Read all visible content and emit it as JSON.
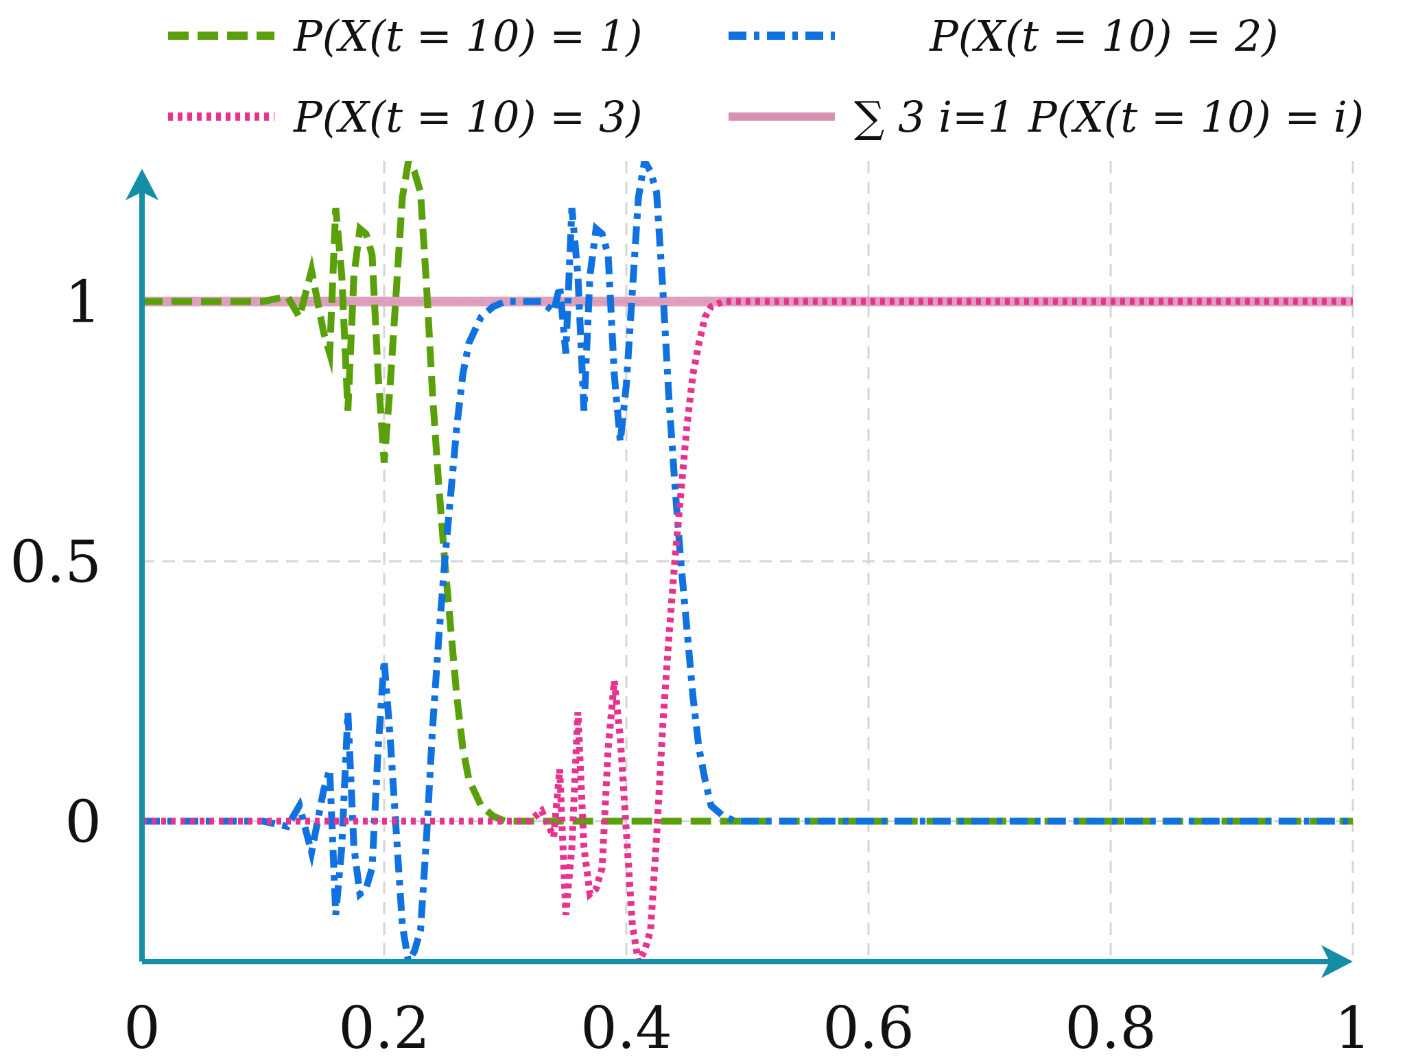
{
  "chart_data": {
    "type": "line",
    "title": "",
    "xlabel": "",
    "ylabel": "",
    "xlim": [
      0,
      1
    ],
    "ylim": [
      -0.27,
      1.27
    ],
    "grid": true,
    "legend_position": "top",
    "x_ticks": [
      "0",
      "0.2",
      "0.4",
      "0.6",
      "0.8",
      "1"
    ],
    "x_tick_values": [
      0,
      0.2,
      0.4,
      0.6,
      0.8,
      1
    ],
    "y_ticks": [
      "0",
      "0.5",
      "1"
    ],
    "y_tick_values": [
      0,
      0.5,
      1
    ],
    "colors": {
      "axis": "#138ea6",
      "p1": "#5aa00a",
      "p2": "#0f72e0",
      "p3": "#e63390",
      "sum": "#d98fb3"
    },
    "series": [
      {
        "name": "P(X(t = 10) = 1)",
        "style": "dashed",
        "color": "#5aa00a",
        "x": [
          0,
          0.1,
          0.12,
          0.13,
          0.14,
          0.15,
          0.155,
          0.16,
          0.165,
          0.17,
          0.175,
          0.18,
          0.185,
          0.19,
          0.195,
          0.2,
          0.205,
          0.21,
          0.215,
          0.22,
          0.225,
          0.23,
          0.235,
          0.24,
          0.245,
          0.25,
          0.255,
          0.26,
          0.265,
          0.27,
          0.28,
          0.29,
          0.3,
          0.32,
          0.35,
          0.4,
          0.5,
          0.6,
          0.8,
          1
        ],
        "values": [
          1,
          1,
          1.01,
          0.97,
          1.06,
          0.94,
          0.9,
          1.18,
          1.05,
          0.79,
          1.05,
          1.14,
          1.13,
          1.09,
          0.86,
          0.69,
          0.84,
          1.02,
          1.2,
          1.27,
          1.25,
          1.21,
          1.03,
          0.82,
          0.65,
          0.5,
          0.37,
          0.24,
          0.14,
          0.08,
          0.03,
          0.01,
          0.0,
          0.0,
          0,
          0,
          0,
          0,
          0,
          0
        ]
      },
      {
        "name": "P(X(t = 10) = 2)",
        "style": "dash-dot",
        "color": "#0f72e0",
        "x": [
          0,
          0.1,
          0.12,
          0.13,
          0.14,
          0.15,
          0.155,
          0.16,
          0.165,
          0.17,
          0.175,
          0.18,
          0.185,
          0.19,
          0.195,
          0.2,
          0.205,
          0.21,
          0.215,
          0.22,
          0.225,
          0.23,
          0.235,
          0.24,
          0.245,
          0.25,
          0.255,
          0.26,
          0.265,
          0.27,
          0.28,
          0.29,
          0.3,
          0.32,
          0.33,
          0.34,
          0.345,
          0.35,
          0.355,
          0.36,
          0.365,
          0.37,
          0.375,
          0.38,
          0.385,
          0.39,
          0.395,
          0.4,
          0.405,
          0.41,
          0.415,
          0.42,
          0.425,
          0.43,
          0.435,
          0.44,
          0.445,
          0.45,
          0.455,
          0.46,
          0.465,
          0.47,
          0.48,
          0.49,
          0.5,
          0.6,
          0.8,
          1
        ],
        "values": [
          0,
          0,
          -0.01,
          0.03,
          -0.06,
          0.06,
          0.1,
          -0.18,
          -0.05,
          0.21,
          -0.05,
          -0.14,
          -0.13,
          -0.09,
          0.14,
          0.31,
          0.16,
          -0.02,
          -0.2,
          -0.27,
          -0.25,
          -0.21,
          -0.03,
          0.18,
          0.35,
          0.5,
          0.63,
          0.76,
          0.86,
          0.92,
          0.97,
          0.99,
          1.0,
          1.0,
          1.0,
          0.98,
          1.03,
          0.9,
          1.18,
          1.05,
          0.79,
          1.05,
          1.14,
          1.13,
          1.09,
          0.86,
          0.73,
          0.84,
          1.02,
          1.2,
          1.27,
          1.25,
          1.21,
          1.03,
          0.82,
          0.65,
          0.5,
          0.37,
          0.24,
          0.14,
          0.08,
          0.03,
          0.01,
          0.0,
          0,
          0,
          0,
          0
        ]
      },
      {
        "name": "P(X(t = 10) = 3)",
        "style": "dotted",
        "color": "#e63390",
        "x": [
          0,
          0.1,
          0.2,
          0.3,
          0.32,
          0.33,
          0.34,
          0.345,
          0.35,
          0.355,
          0.36,
          0.365,
          0.37,
          0.375,
          0.38,
          0.385,
          0.39,
          0.395,
          0.4,
          0.405,
          0.41,
          0.415,
          0.42,
          0.425,
          0.43,
          0.435,
          0.44,
          0.445,
          0.45,
          0.455,
          0.46,
          0.465,
          0.47,
          0.48,
          0.49,
          0.5,
          0.6,
          0.8,
          1
        ],
        "values": [
          0,
          0,
          0,
          0,
          0,
          0.02,
          -0.03,
          0.1,
          -0.18,
          -0.05,
          0.21,
          -0.05,
          -0.14,
          -0.13,
          -0.09,
          0.14,
          0.27,
          0.16,
          -0.02,
          -0.2,
          -0.27,
          -0.25,
          -0.21,
          -0.03,
          0.18,
          0.35,
          0.5,
          0.63,
          0.76,
          0.86,
          0.92,
          0.97,
          0.99,
          1.0,
          1.0,
          1,
          1,
          1,
          1
        ]
      },
      {
        "name": "∑ 3 i=1 P(X(t = 10) = i)",
        "style": "solid",
        "color": "#d98fb3",
        "x": [
          0,
          1
        ],
        "values": [
          1,
          1
        ]
      }
    ]
  }
}
